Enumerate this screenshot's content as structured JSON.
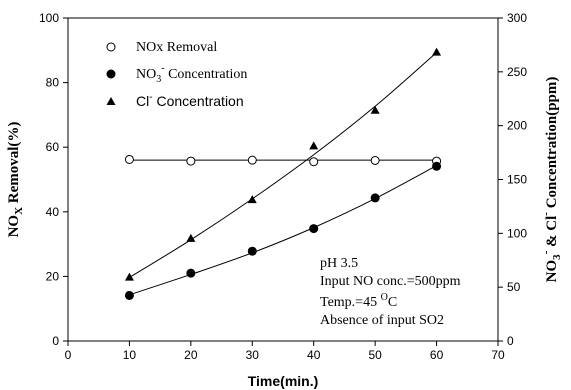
{
  "chart_data": {
    "type": "line",
    "xlabel": "Time(min.)",
    "ylabel_left": {
      "main": "NO",
      "sub": "X",
      "rest": " Removal(%)"
    },
    "ylabel_right": {
      "part1": "NO",
      "sub1": "3",
      "sup1": "-",
      "part2": " & Cl",
      "sup2": "-",
      "part3": " Concentration(ppm)"
    },
    "xlim": [
      0,
      70
    ],
    "ylim_left": [
      0,
      100
    ],
    "ylim_right": [
      0,
      300
    ],
    "x_ticks": [
      "0",
      "10",
      "20",
      "30",
      "40",
      "50",
      "60",
      "70"
    ],
    "y_left_ticks": [
      "0",
      "20",
      "40",
      "60",
      "80",
      "100"
    ],
    "y_right_ticks": [
      "0",
      "50",
      "100",
      "150",
      "200",
      "250",
      "300"
    ],
    "series": [
      {
        "name": "NOx Removal",
        "axis": "left",
        "marker": "open-circle",
        "x": [
          10,
          20,
          30,
          40,
          50,
          60
        ],
        "y": [
          56.2,
          55.7,
          56.0,
          55.5,
          55.9,
          55.7
        ],
        "fit": [
          [
            10,
            56
          ],
          [
            60,
            56
          ]
        ]
      },
      {
        "name": "NO3- Concentration",
        "legend_label": {
          "part1": "NO",
          "sub": "3",
          "sup": "-",
          "part2": " Concentration"
        },
        "axis": "left",
        "marker": "filled-circle",
        "x": [
          10,
          20,
          30,
          40,
          50,
          60
        ],
        "y": [
          14.1,
          21.0,
          27.8,
          34.8,
          44.3,
          54.1
        ],
        "fit": [
          [
            10,
            14.3
          ],
          [
            20,
            20.6
          ],
          [
            30,
            27.3
          ],
          [
            40,
            35.1
          ],
          [
            50,
            44.1
          ],
          [
            60,
            54.3
          ]
        ]
      },
      {
        "name": "Cl- Concentration",
        "legend_label": {
          "part1": "Cl",
          "sup": "-",
          "part2": " Concentration"
        },
        "axis": "right",
        "marker": "filled-triangle",
        "x": [
          10,
          20,
          30,
          40,
          50,
          60
        ],
        "y": [
          59,
          95,
          131,
          181,
          214,
          268
        ],
        "fit": [
          [
            10,
            59
          ],
          [
            20,
            94
          ],
          [
            30,
            132
          ],
          [
            40,
            173
          ],
          [
            50,
            218
          ],
          [
            60,
            268
          ]
        ]
      }
    ],
    "grid": false,
    "legend_position": "top-left"
  },
  "annotations": {
    "line1": "pH 3.5",
    "line2": "Input NO conc.=500ppm",
    "line3_main": "Temp.=45 ",
    "line3_sup": "O",
    "line3_end": "C",
    "line4": "Absence of input SO2"
  }
}
